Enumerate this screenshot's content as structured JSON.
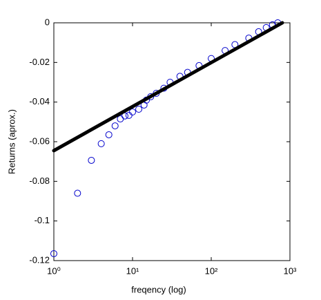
{
  "chart_data": {
    "type": "scatter",
    "xlabel": "freqency (log)",
    "ylabel": "Returns (aprox.)",
    "xscale": "log",
    "xlim": [
      1,
      1000
    ],
    "ylim": [
      -0.12,
      0
    ],
    "xticks": [
      {
        "value": 1,
        "label": "10⁰"
      },
      {
        "value": 10,
        "label": "10¹"
      },
      {
        "value": 100,
        "label": "10²"
      },
      {
        "value": 1000,
        "label": "10³"
      }
    ],
    "yticks": [
      -0.12,
      -0.1,
      -0.08,
      -0.06,
      -0.04,
      -0.02,
      0
    ],
    "series": [
      {
        "color": "#0000cc",
        "marker": "circle",
        "x": [
          1,
          2,
          3,
          4,
          5,
          6,
          7,
          8,
          9,
          10,
          12,
          14,
          15,
          17,
          20,
          25,
          30,
          40,
          50,
          70,
          100,
          150,
          200,
          300,
          400,
          500,
          600,
          700
        ],
        "values": [
          -0.1165,
          -0.086,
          -0.0694,
          -0.061,
          -0.0565,
          -0.052,
          -0.0485,
          -0.047,
          -0.0467,
          -0.045,
          -0.0436,
          -0.0415,
          -0.039,
          -0.0373,
          -0.0356,
          -0.033,
          -0.03,
          -0.027,
          -0.025,
          -0.0216,
          -0.018,
          -0.014,
          -0.011,
          -0.0077,
          -0.0045,
          -0.0024,
          -0.001,
          0
        ]
      },
      {
        "color": "#000000",
        "marker": "line",
        "x": [
          1,
          800
        ],
        "values": [
          -0.0645,
          0
        ]
      }
    ]
  }
}
